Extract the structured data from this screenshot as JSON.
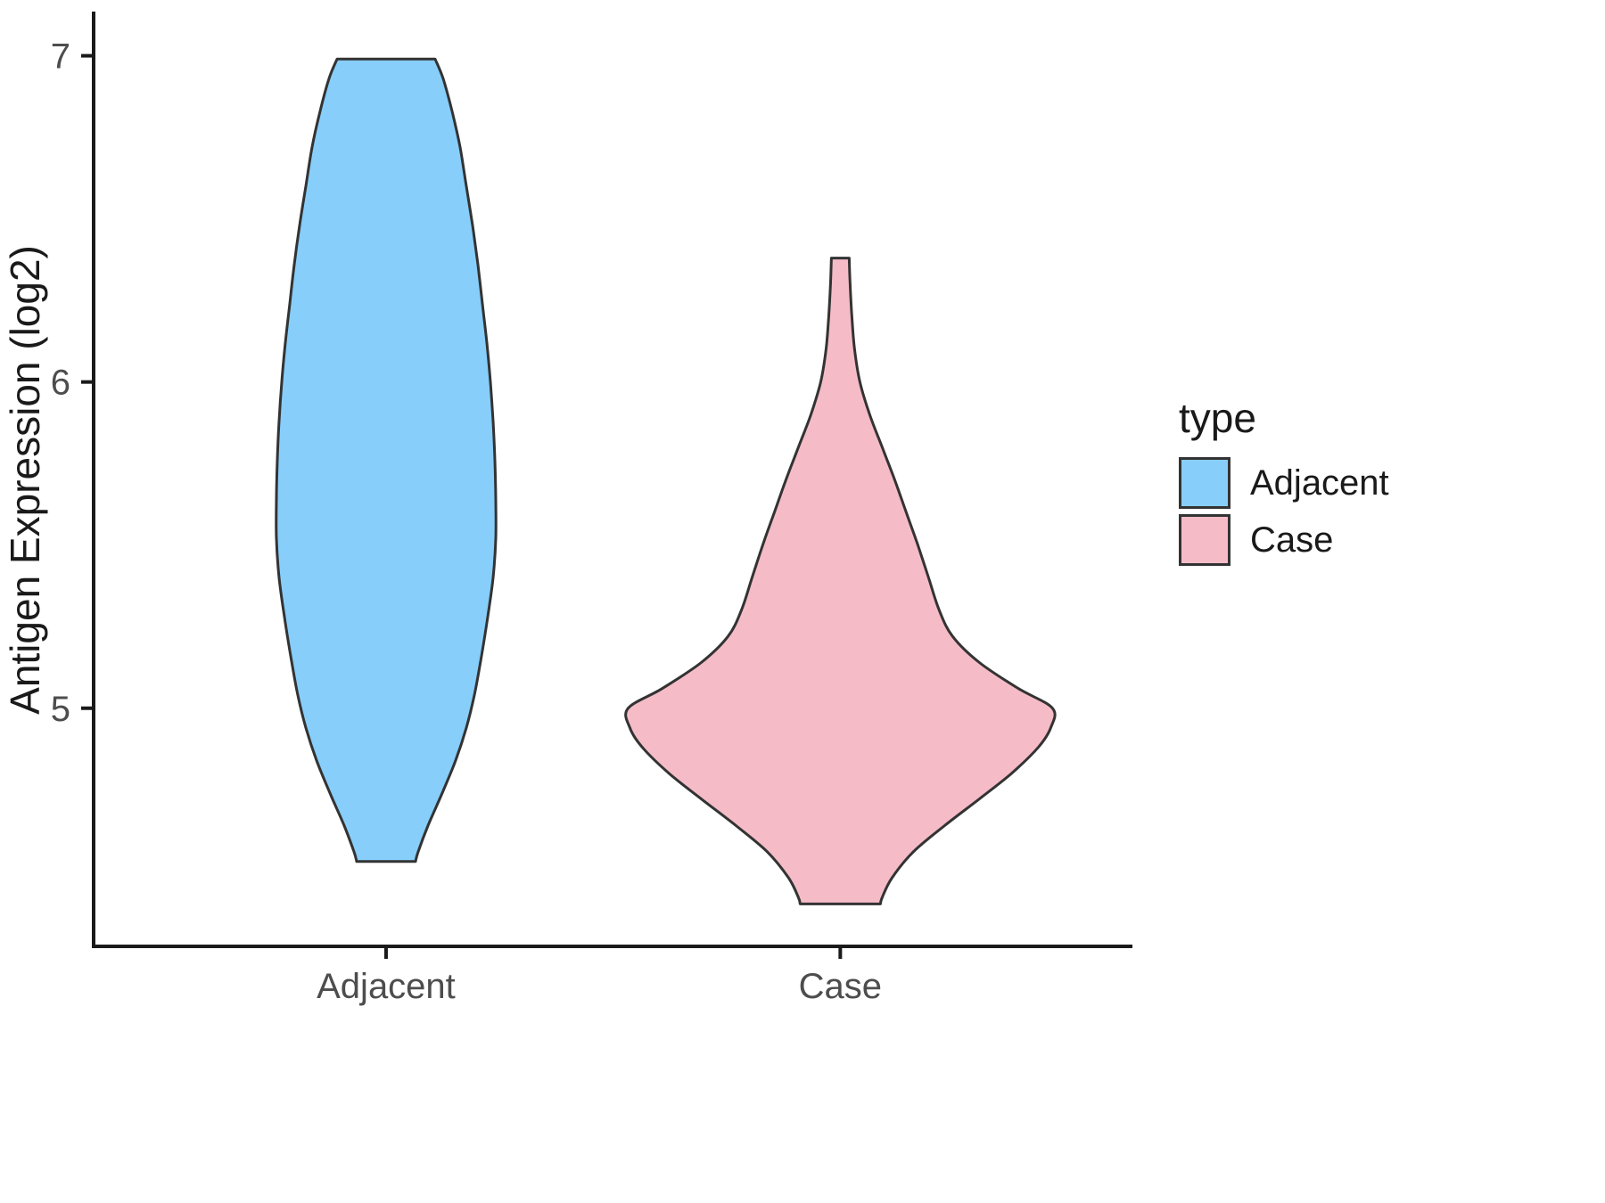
{
  "chart_data": {
    "type": "violin",
    "title": "",
    "xlabel": "",
    "ylabel": "Antigen Expression (log2)",
    "categories": [
      "Adjacent",
      "Case"
    ],
    "y_ticks": [
      5,
      6,
      7
    ],
    "ylim": [
      4.27,
      7.13
    ],
    "grid": false,
    "category_x": [
      0.282,
      0.72
    ],
    "profile_units": [
      "expression_log2_value",
      "half_width_px"
    ],
    "style": {
      "axis_color": "#1a1a1a",
      "tick_label_color": "#4d4d4d",
      "label_color": "#1a1a1a",
      "background": "#ffffff",
      "violin_outline": "#333333"
    },
    "legend": {
      "title": "type",
      "position": "right",
      "entries": [
        {
          "label": "Adjacent",
          "color": "#87CEFA"
        },
        {
          "label": "Case",
          "color": "#F5BCC8"
        }
      ]
    },
    "series": [
      {
        "name": "Adjacent",
        "fill": "#87CEFA",
        "outline": "#333333",
        "y_range": [
          4.53,
          6.99
        ],
        "profile": [
          [
            6.99,
            55
          ],
          [
            6.93,
            64
          ],
          [
            6.83,
            74
          ],
          [
            6.72,
            83
          ],
          [
            6.6,
            90
          ],
          [
            6.48,
            97
          ],
          [
            6.36,
            103
          ],
          [
            6.24,
            108
          ],
          [
            6.12,
            113
          ],
          [
            6.0,
            117
          ],
          [
            5.88,
            120
          ],
          [
            5.76,
            122
          ],
          [
            5.64,
            123
          ],
          [
            5.52,
            123
          ],
          [
            5.4,
            120
          ],
          [
            5.28,
            114
          ],
          [
            5.16,
            107
          ],
          [
            5.04,
            99
          ],
          [
            4.94,
            90
          ],
          [
            4.84,
            78
          ],
          [
            4.74,
            63
          ],
          [
            4.64,
            47
          ],
          [
            4.56,
            36
          ],
          [
            4.53,
            33
          ]
        ]
      },
      {
        "name": "Case",
        "fill": "#F5BCC8",
        "outline": "#333333",
        "y_range": [
          4.4,
          6.38
        ],
        "profile": [
          [
            6.38,
            10
          ],
          [
            6.3,
            11
          ],
          [
            6.2,
            13
          ],
          [
            6.1,
            16
          ],
          [
            6.0,
            22
          ],
          [
            5.9,
            33
          ],
          [
            5.8,
            47
          ],
          [
            5.7,
            61
          ],
          [
            5.6,
            74
          ],
          [
            5.5,
            87
          ],
          [
            5.4,
            99
          ],
          [
            5.3,
            111
          ],
          [
            5.22,
            126
          ],
          [
            5.14,
            156
          ],
          [
            5.06,
            200
          ],
          [
            5.0,
            238
          ],
          [
            4.94,
            236
          ],
          [
            4.88,
            222
          ],
          [
            4.8,
            192
          ],
          [
            4.72,
            155
          ],
          [
            4.64,
            117
          ],
          [
            4.56,
            82
          ],
          [
            4.48,
            58
          ],
          [
            4.42,
            47
          ],
          [
            4.4,
            45
          ]
        ]
      }
    ]
  }
}
